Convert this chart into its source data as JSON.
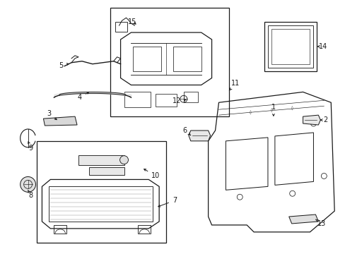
{
  "background_color": "#ffffff",
  "fig_width": 4.89,
  "fig_height": 3.6,
  "dpi": 100,
  "line_color": "#1a1a1a",
  "label_fontsize": 7.0,
  "line_width": 0.9
}
